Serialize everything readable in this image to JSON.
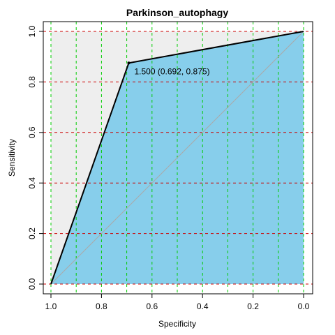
{
  "chart_data": {
    "type": "line",
    "title": "Parkinson_autophagy",
    "xlabel": "Specificity",
    "ylabel": "Sensitivity",
    "xlim": [
      1.0,
      0.0
    ],
    "ylim": [
      0.0,
      1.0
    ],
    "x_reversed": true,
    "x_ticks": [
      1.0,
      0.8,
      0.6,
      0.4,
      0.2,
      0.0
    ],
    "x_tick_labels": [
      "1.0",
      "0.8",
      "0.6",
      "0.4",
      "0.2",
      "0.0"
    ],
    "y_ticks": [
      0.0,
      0.2,
      0.4,
      0.6,
      0.8,
      1.0
    ],
    "y_tick_labels": [
      "0.0",
      "0.2",
      "0.4",
      "0.6",
      "0.8",
      "1.0"
    ],
    "grid": true,
    "x_grid_color": "#00cc00",
    "y_grid_color": "#cc0000",
    "series": [
      {
        "specificity": [
          1.0,
          0.692,
          0.0
        ],
        "sensitivity": [
          0.0,
          0.875,
          1.0
        ],
        "line_color": "#000000",
        "fill_color": "#87ceeb"
      }
    ],
    "max_region_color": "#eeeeee",
    "diagonal": {
      "specificity": [
        1.0,
        0.0
      ],
      "sensitivity": [
        0.0,
        1.0
      ],
      "color": "#aaaaaa"
    },
    "threshold_point": {
      "specificity": 0.692,
      "sensitivity": 0.875,
      "label": "1.500 (0.692, 0.875)"
    }
  }
}
